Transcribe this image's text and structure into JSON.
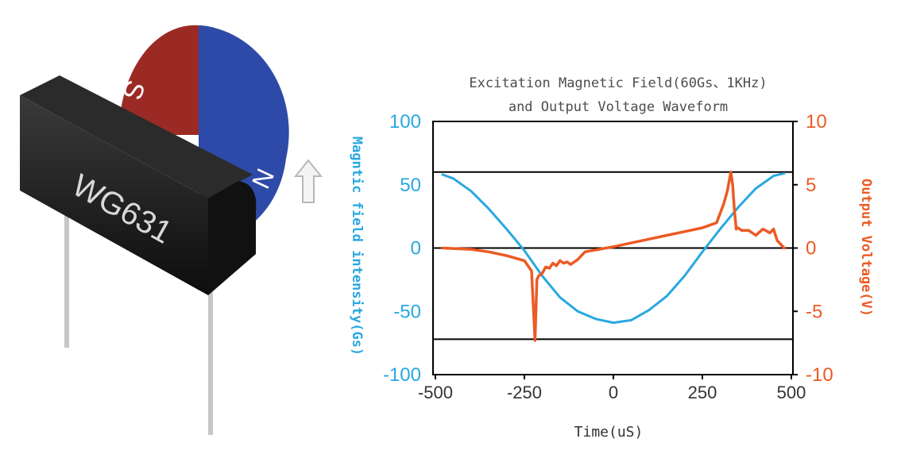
{
  "sensor": {
    "label": "WG631",
    "pole_south": "S",
    "pole_north": "N"
  },
  "colors": {
    "field": "#29a8e0",
    "voltage": "#ec5a24",
    "axis": "#000000",
    "title": "#4d4d4d",
    "magnet_south": "#9b2a25",
    "magnet_north": "#2e4aa8",
    "sensor_body": "#1c1c1c"
  },
  "chart_data": {
    "type": "line",
    "title": "Excitation Magnetic Field(60Gs、1KHz)",
    "subtitle": "and Output Voltage Waveform",
    "xlabel": "Time(uS)",
    "ylabel_left": "Magntic field intensity(Gs)",
    "ylabel_right": "Output Voltage(V)",
    "xlim": [
      -500,
      500
    ],
    "ylim_left": [
      -100,
      100
    ],
    "ylim_right": [
      -10,
      10
    ],
    "x_ticks": [
      "-500",
      "-250",
      "0",
      "250",
      "500"
    ],
    "y_ticks_left": [
      "100",
      "50",
      "0",
      "-50",
      "-100"
    ],
    "y_ticks_right": [
      "10",
      "5",
      "0",
      "-5",
      "-10"
    ],
    "reference_lines_left": [
      60,
      0,
      -72
    ],
    "grid": false,
    "series": [
      {
        "axis": "left",
        "x": [
          -480,
          -450,
          -400,
          -350,
          -300,
          -250,
          -200,
          -150,
          -100,
          -50,
          0,
          50,
          100,
          150,
          200,
          250,
          300,
          350,
          400,
          450,
          480
        ],
        "values": [
          58,
          55,
          45,
          31,
          15,
          -2,
          -22,
          -39,
          -50,
          -56,
          -59,
          -57,
          -49,
          -38,
          -22,
          -3,
          15,
          32,
          47,
          57,
          59
        ]
      },
      {
        "axis": "right",
        "x": [
          -480,
          -400,
          -350,
          -300,
          -250,
          -230,
          -220,
          -215,
          -210,
          -200,
          -190,
          -180,
          -170,
          -160,
          -150,
          -140,
          -130,
          -120,
          -100,
          -80,
          -60,
          -40,
          -20,
          0,
          50,
          100,
          150,
          200,
          250,
          290,
          310,
          320,
          330,
          335,
          340,
          345,
          350,
          360,
          380,
          400,
          420,
          440,
          450,
          460,
          480
        ],
        "values": [
          0,
          -0.1,
          -0.3,
          -0.6,
          -1,
          -1.8,
          -7.3,
          -2.5,
          -2.2,
          -2,
          -1.5,
          -1.6,
          -1.2,
          -1.4,
          -1,
          -1.2,
          -1.1,
          -1.3,
          -0.9,
          -0.3,
          -0.2,
          -0.1,
          0,
          0.1,
          0.4,
          0.7,
          1,
          1.3,
          1.6,
          2,
          3.5,
          4.5,
          6,
          5,
          3,
          1.5,
          1.6,
          1.4,
          1.4,
          1,
          1.5,
          1.2,
          1.5,
          0.6,
          0
        ]
      }
    ]
  }
}
